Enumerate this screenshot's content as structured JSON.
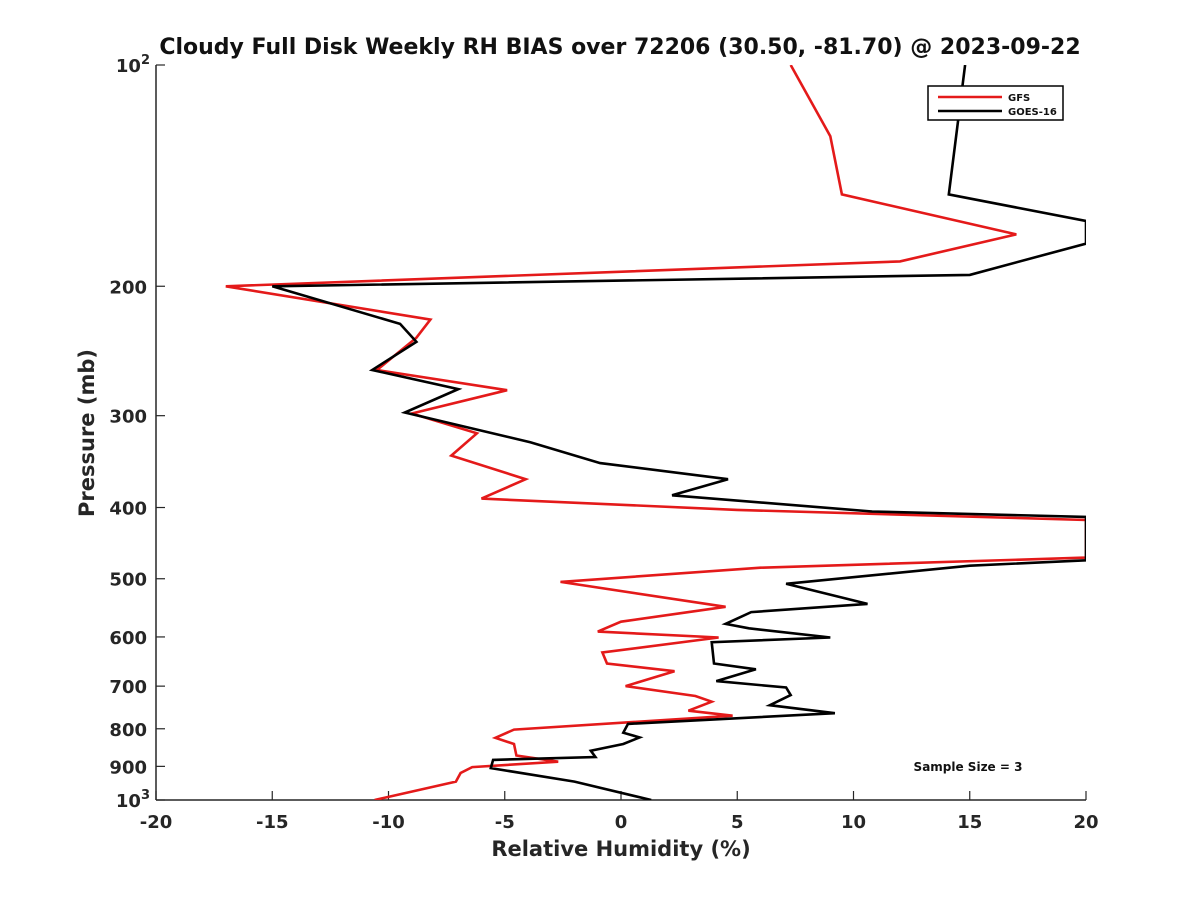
{
  "chart_data": {
    "type": "line",
    "orientation": "vertical-profile",
    "title": "Cloudy Full Disk Weekly RH BIAS over 72206 (30.50, -81.70) @ 2023-09-22",
    "xlabel": "Relative Humidity (%)",
    "ylabel": "Pressure (mb)",
    "xlim": [
      -20,
      20
    ],
    "ylim": [
      100,
      1000
    ],
    "yscale": "log",
    "y_reversed": true,
    "x_ticks": [
      -20,
      -15,
      -10,
      -5,
      0,
      5,
      10,
      15,
      20
    ],
    "x_tick_labels": [
      "-20",
      "-15",
      "-10",
      "-5",
      "0",
      "5",
      "10",
      "15",
      "20"
    ],
    "y_ticks": [
      {
        "value": 100,
        "base": "10",
        "exp": "2"
      },
      {
        "value": 200,
        "label": "200"
      },
      {
        "value": 300,
        "label": "300"
      },
      {
        "value": 400,
        "label": "400"
      },
      {
        "value": 500,
        "label": "500"
      },
      {
        "value": 600,
        "label": "600"
      },
      {
        "value": 700,
        "label": "700"
      },
      {
        "value": 800,
        "label": "800"
      },
      {
        "value": 900,
        "label": "900"
      },
      {
        "value": 1000,
        "base": "10",
        "exp": "3"
      }
    ],
    "legend": {
      "placement": "top-right"
    },
    "annotation": "Sample Size = 3",
    "series": [
      {
        "name": "GFS",
        "color": "#e41a1a",
        "points": [
          [
            7.3,
            100
          ],
          [
            9.0,
            125
          ],
          [
            9.5,
            150
          ],
          [
            17.0,
            170
          ],
          [
            12.0,
            185
          ],
          [
            -17.0,
            200
          ],
          [
            -8.2,
            222
          ],
          [
            -8.8,
            235
          ],
          [
            -10.5,
            260
          ],
          [
            -4.9,
            277
          ],
          [
            -9.0,
            298
          ],
          [
            -6.2,
            317
          ],
          [
            -7.3,
            340
          ],
          [
            -4.1,
            366
          ],
          [
            -6.0,
            389
          ],
          [
            5.0,
            403
          ],
          [
            20.0,
            416
          ],
          [
            20.0,
            468
          ],
          [
            6.0,
            483
          ],
          [
            -2.6,
            505
          ],
          [
            4.5,
            546
          ],
          [
            0.0,
            572
          ],
          [
            -1.0,
            590
          ],
          [
            4.2,
            601
          ],
          [
            -0.8,
            630
          ],
          [
            -0.6,
            652
          ],
          [
            2.3,
            668
          ],
          [
            0.2,
            700
          ],
          [
            3.2,
            722
          ],
          [
            3.9,
            735
          ],
          [
            2.9,
            756
          ],
          [
            4.8,
            768
          ],
          [
            -4.6,
            802
          ],
          [
            -5.4,
            823
          ],
          [
            -4.6,
            839
          ],
          [
            -4.5,
            870
          ],
          [
            -2.7,
            887
          ],
          [
            -6.4,
            902
          ],
          [
            -6.9,
            919
          ],
          [
            -7.1,
            944
          ],
          [
            -10.6,
            1000
          ]
        ]
      },
      {
        "name": "GOES-16",
        "color": "#000000",
        "points": [
          [
            14.8,
            100
          ],
          [
            14.1,
            150
          ],
          [
            20.0,
            163
          ],
          [
            20.0,
            175
          ],
          [
            15.0,
            193
          ],
          [
            -15.0,
            200
          ],
          [
            -9.5,
            225
          ],
          [
            -8.8,
            238
          ],
          [
            -10.7,
            260
          ],
          [
            -7.0,
            276
          ],
          [
            -9.3,
            297
          ],
          [
            -3.9,
            326
          ],
          [
            -0.9,
            348
          ],
          [
            4.6,
            366
          ],
          [
            2.2,
            385
          ],
          [
            10.8,
            405
          ],
          [
            20.0,
            412
          ],
          [
            20.0,
            472
          ],
          [
            15.0,
            480
          ],
          [
            7.1,
            508
          ],
          [
            10.6,
            541
          ],
          [
            5.6,
            555
          ],
          [
            4.5,
            576
          ],
          [
            5.5,
            584
          ],
          [
            9.0,
            601
          ],
          [
            3.9,
            610
          ],
          [
            4.0,
            652
          ],
          [
            5.8,
            664
          ],
          [
            4.1,
            689
          ],
          [
            7.1,
            703
          ],
          [
            7.3,
            720
          ],
          [
            6.4,
            743
          ],
          [
            9.2,
            762
          ],
          [
            0.3,
            788
          ],
          [
            0.1,
            810
          ],
          [
            0.8,
            822
          ],
          [
            0.1,
            839
          ],
          [
            -1.3,
            857
          ],
          [
            -1.1,
            874
          ],
          [
            -5.5,
            882
          ],
          [
            -5.6,
            905
          ],
          [
            -2.0,
            944
          ],
          [
            1.3,
            1000
          ]
        ]
      }
    ]
  }
}
